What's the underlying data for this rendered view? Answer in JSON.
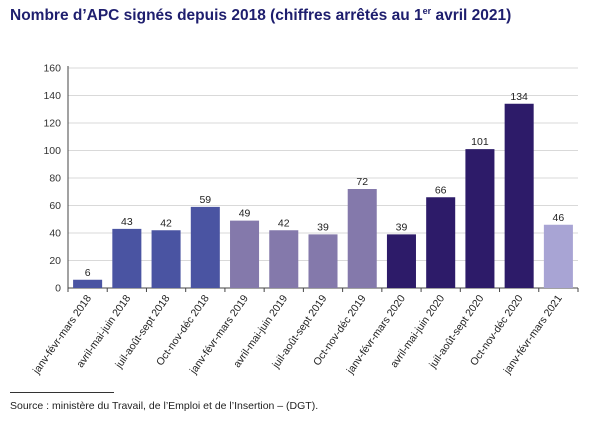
{
  "title": {
    "main": "Nombre d’APC signés depuis 2018 (chiffres arrêtés au 1",
    "sup": "er",
    "tail": " avril 2021)"
  },
  "source": "Source : ministère du Travail, de l’Emploi et de l’Insertion – (DGT).",
  "chart_data": {
    "type": "bar",
    "title": "Nombre d’APC signés depuis 2018 (chiffres arrêtés au 1er avril 2021)",
    "xlabel": "",
    "ylabel": "",
    "ylim": [
      0,
      160
    ],
    "yticks": [
      0,
      20,
      40,
      60,
      80,
      100,
      120,
      140,
      160
    ],
    "grid": true,
    "categories": [
      "janv-févr-mars 2018",
      "avril-mai-juin 2018",
      "juil-août-sept 2018",
      "Oct-nov-déc 2018",
      "janv-févr-mars 2019",
      "avril-mai-juin 2019",
      "juil-août-sept 2019",
      "Oct-nov-déc 2019",
      "janv-févr-mars 2020",
      "avril-mai-juin 2020",
      "juil-août-sept 2020",
      "Oct-nov-déc 2020",
      "janv-févr-mars 2021"
    ],
    "values": [
      6,
      43,
      42,
      59,
      49,
      42,
      39,
      72,
      39,
      66,
      101,
      134,
      46
    ],
    "colors": [
      "#4a54a2",
      "#4a54a2",
      "#4a54a2",
      "#4a54a2",
      "#8479ab",
      "#8479ab",
      "#8479ab",
      "#8479ab",
      "#2d1b69",
      "#2d1b69",
      "#2d1b69",
      "#2d1b69",
      "#a8a4d4"
    ]
  }
}
